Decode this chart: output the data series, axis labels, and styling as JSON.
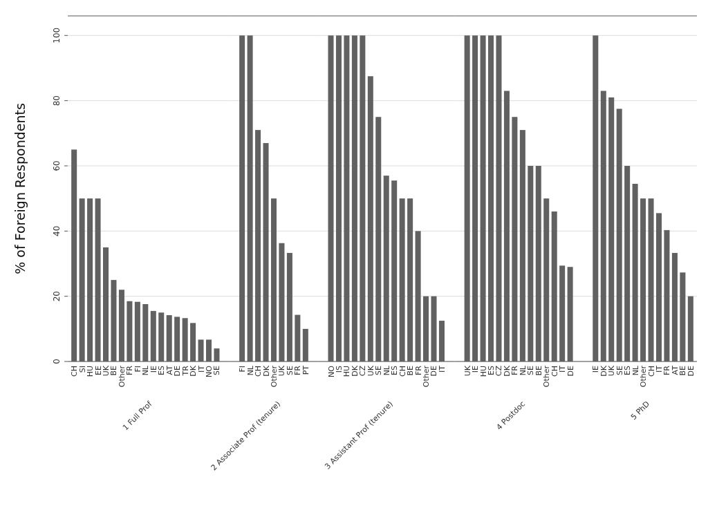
{
  "chart_data": [
    {
      "type": "bar",
      "xlabel": "1 Full Prof",
      "ylabel": "% of Foreign Respondents",
      "color": "#616161",
      "grid": "y",
      "ylim": [
        0,
        106
      ],
      "yticks": [
        0,
        20,
        40,
        60,
        80,
        100
      ],
      "categories": [
        "CH",
        "SI",
        "HU",
        "EE",
        "UK",
        "BE",
        "Other",
        "FR",
        "FI",
        "NL",
        "IE",
        "ES",
        "AT",
        "DE",
        "TR",
        "DK",
        "IT",
        "NO",
        "SE"
      ],
      "values": [
        65,
        50,
        50,
        50,
        35,
        25,
        22,
        18.5,
        18.3,
        17.6,
        15.5,
        15,
        14.2,
        13.7,
        13.3,
        11.8,
        6.7,
        6.7,
        4
      ]
    },
    {
      "type": "bar",
      "xlabel": "2 Associate Prof (tenure)",
      "color": "#616161",
      "grid": "y",
      "ylim": [
        0,
        106
      ],
      "yticks": [
        0,
        20,
        40,
        60,
        80,
        100
      ],
      "tick_labels": "x",
      "categories": [
        "FI",
        "NL",
        "CH",
        "DK",
        "Other",
        "UK",
        "SE",
        "FR",
        "PT"
      ],
      "values": [
        100,
        100,
        71,
        67,
        50,
        36.3,
        33.3,
        14.3,
        10
      ]
    },
    {
      "type": "bar",
      "xlabel": "3 Assistant Prof (tenure)",
      "color": "#616161",
      "grid": "y",
      "ylim": [
        0,
        106
      ],
      "yticks": [
        0,
        20,
        40,
        60,
        80,
        100
      ],
      "tick_labels": "x",
      "categories": [
        "NO",
        "IS",
        "HU",
        "DK",
        "CZ",
        "UK",
        "SE",
        "NL",
        "ES",
        "CH",
        "BE",
        "FR",
        "Other",
        "DE",
        "IT"
      ],
      "values": [
        100,
        100,
        100,
        100,
        100,
        87.5,
        75,
        57,
        55.5,
        50,
        50,
        40,
        20,
        20,
        12.5
      ]
    },
    {
      "type": "bar",
      "xlabel": "4 Postdoc",
      "color": "#616161",
      "grid": "y",
      "ylim": [
        0,
        106
      ],
      "yticks": [
        0,
        20,
        40,
        60,
        80,
        100
      ],
      "tick_labels": "x",
      "categories": [
        "UK",
        "IE",
        "HU",
        "ES",
        "CZ",
        "DK",
        "FR",
        "NL",
        "SE",
        "BE",
        "Other",
        "CH",
        "IT",
        "DE"
      ],
      "values": [
        100,
        100,
        100,
        100,
        100,
        83,
        75,
        71,
        60,
        60,
        50,
        46,
        29.4,
        29
      ]
    },
    {
      "type": "bar",
      "xlabel": "5 PhD",
      "color": "#616161",
      "grid": "y",
      "ylim": [
        0,
        106
      ],
      "yticks": [
        0,
        20,
        40,
        60,
        80,
        100
      ],
      "tick_labels": "x",
      "categories": [
        "IE",
        "DK",
        "UK",
        "SE",
        "ES",
        "NL",
        "Other",
        "CH",
        "IT",
        "FR",
        "AT",
        "BE",
        "DE"
      ],
      "values": [
        100,
        83,
        81,
        77.5,
        60,
        54.5,
        50,
        50,
        45.5,
        40.3,
        33.3,
        27.3,
        20
      ]
    }
  ]
}
